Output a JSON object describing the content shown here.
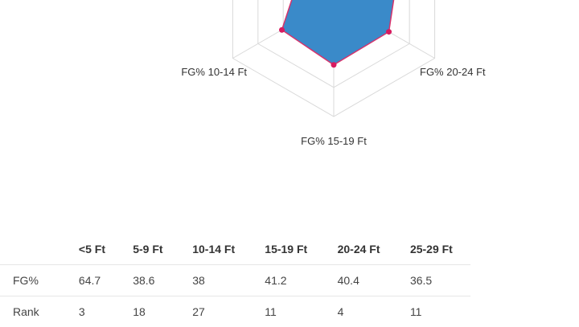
{
  "chart_data": {
    "type": "radar",
    "axes": [
      "FG% 10-14 Ft",
      "FG% 15-19 Ft",
      "FG% 20-24 Ft"
    ],
    "series": [
      {
        "values": [
          38,
          41.2,
          40.4
        ]
      }
    ],
    "colors": {
      "fill": "#3a8ac9",
      "stroke": "#d6336c",
      "point": "#d81b60",
      "grid": "#d9d9d9"
    },
    "grid_levels": 4
  },
  "table": {
    "headers": [
      "",
      "<5 Ft",
      "5-9 Ft",
      "10-14 Ft",
      "15-19 Ft",
      "20-24 Ft",
      "25-29 Ft"
    ],
    "rows": [
      {
        "label": "FG%",
        "values": [
          "64.7",
          "38.6",
          "38",
          "41.2",
          "40.4",
          "36.5"
        ]
      },
      {
        "label": "Rank",
        "values": [
          "3",
          "18",
          "27",
          "11",
          "4",
          "11"
        ]
      }
    ]
  }
}
